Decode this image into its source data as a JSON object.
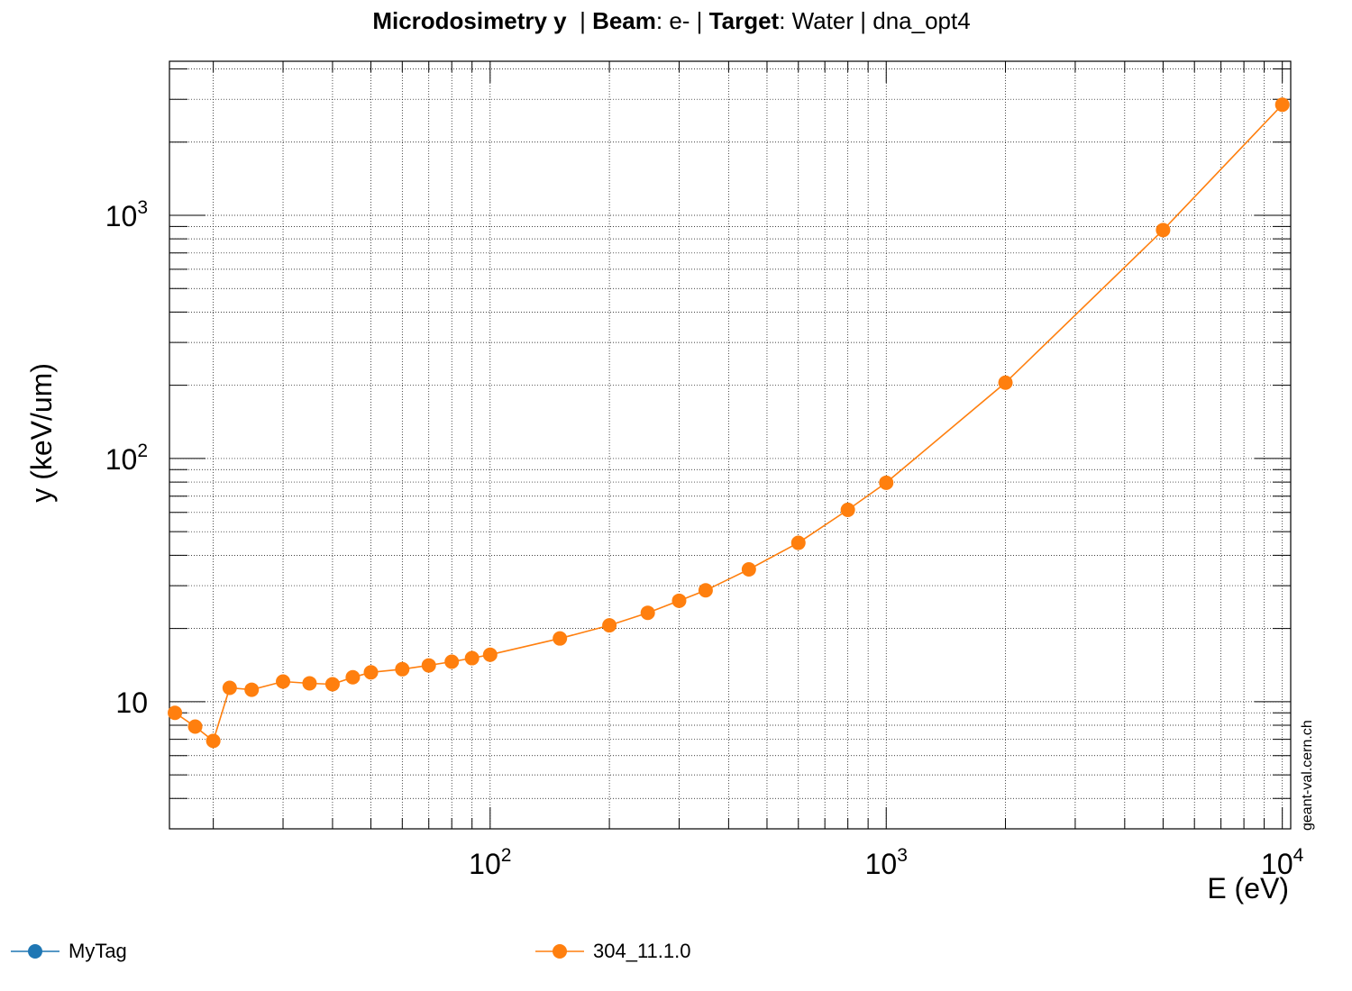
{
  "title": {
    "quantity": "Microdosimetry y",
    "beam_key": "Beam",
    "beam_val": ": e- | ",
    "target_key": "Target",
    "target_val": ": Water | dna_opt4"
  },
  "watermark": "geant-val.cern.ch",
  "chart_data": {
    "type": "line",
    "xlabel": "E (eV)",
    "ylabel": "y (keV/um)",
    "x_scale": "log",
    "y_scale": "log",
    "xlim": [
      15.5,
      10500
    ],
    "ylim": [
      3.0,
      4300
    ],
    "grid": true,
    "legend_position": "bottom",
    "x_ticks": [
      {
        "value": 100,
        "base": "10",
        "exp": "2"
      },
      {
        "value": 1000,
        "base": "10",
        "exp": "3"
      },
      {
        "value": 10000,
        "base": "10",
        "exp": "4"
      }
    ],
    "y_ticks": [
      {
        "value": 10,
        "base": "10",
        "exp": ""
      },
      {
        "value": 100,
        "base": "10",
        "exp": "2"
      },
      {
        "value": 1000,
        "base": "10",
        "exp": "3"
      }
    ],
    "series": [
      {
        "name": "MyTag",
        "color": "#1f77b4",
        "x": [],
        "y": []
      },
      {
        "name": "304_11.1.0",
        "color": "#ff7f0e",
        "x": [
          16,
          18,
          20,
          22,
          25,
          30,
          35,
          40,
          45,
          50,
          60,
          70,
          80,
          90,
          100,
          150,
          200,
          250,
          300,
          350,
          450,
          600,
          800,
          1000,
          2000,
          5000,
          10000
        ],
        "y": [
          9.0,
          7.9,
          6.9,
          11.4,
          11.2,
          12.1,
          11.9,
          11.8,
          12.6,
          13.2,
          13.6,
          14.1,
          14.6,
          15.1,
          15.6,
          18.2,
          20.6,
          23.2,
          26.0,
          28.7,
          35.0,
          45.0,
          61.5,
          79.5,
          205,
          870,
          2850
        ]
      }
    ]
  }
}
